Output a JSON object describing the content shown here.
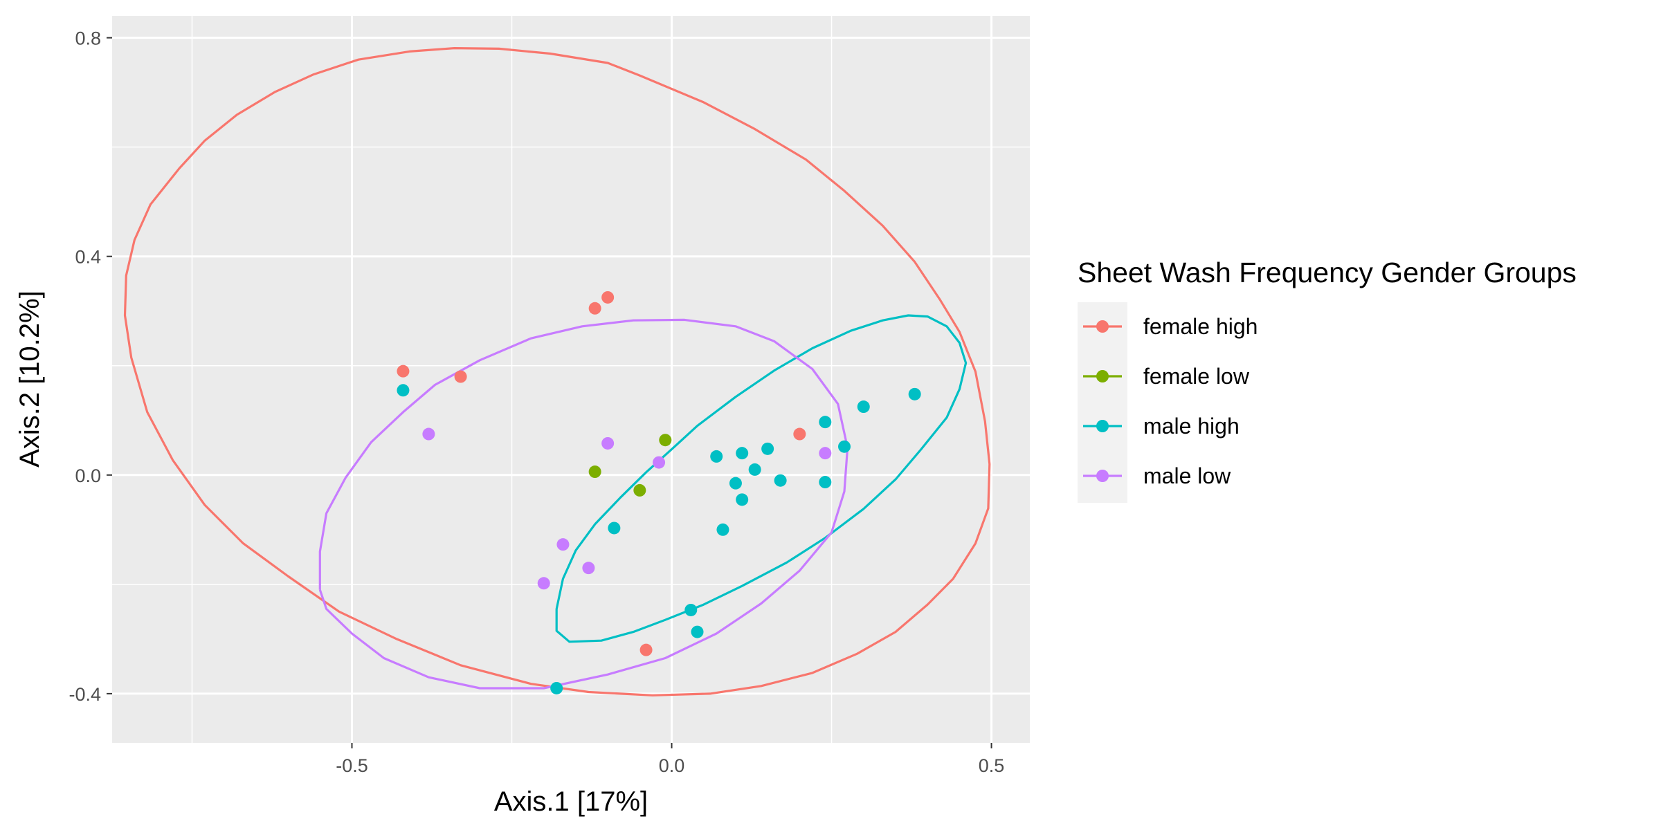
{
  "chart_data": {
    "type": "scatter",
    "title": "",
    "xlabel": "Axis.1   [17%]",
    "ylabel": "Axis.2   [10.2%]",
    "xlim": [
      -0.875,
      0.56
    ],
    "ylim": [
      -0.49,
      0.84
    ],
    "x_ticks": [
      -0.5,
      0.0,
      0.5
    ],
    "x_tick_labels": [
      "-0.5",
      "0.0",
      "0.5"
    ],
    "y_ticks": [
      -0.4,
      0.0,
      0.4,
      0.8
    ],
    "y_tick_labels": [
      "-0.4",
      "0.0",
      "0.4",
      "0.8"
    ],
    "grid": true,
    "legend": {
      "title": "Sheet Wash Frequency Gender Groups",
      "position": "right"
    },
    "series": [
      {
        "name": "female high",
        "color": "#F8766D",
        "points": [
          [
            -0.12,
            0.305
          ],
          [
            -0.1,
            0.325
          ],
          [
            -0.42,
            0.19
          ],
          [
            -0.33,
            0.18
          ],
          [
            0.2,
            0.075
          ],
          [
            -0.04,
            -0.32
          ]
        ],
        "ellipse": [
          [
            -0.77,
            0.561
          ],
          [
            -0.73,
            0.612
          ],
          [
            -0.68,
            0.659
          ],
          [
            -0.62,
            0.701
          ],
          [
            -0.56,
            0.733
          ],
          [
            -0.49,
            0.76
          ],
          [
            -0.41,
            0.775
          ],
          [
            -0.34,
            0.781
          ],
          [
            -0.27,
            0.78
          ],
          [
            -0.19,
            0.771
          ],
          [
            -0.1,
            0.754
          ],
          [
            -0.05,
            0.731
          ],
          [
            0.05,
            0.682
          ],
          [
            0.13,
            0.633
          ],
          [
            0.21,
            0.577
          ],
          [
            0.27,
            0.52
          ],
          [
            0.33,
            0.456
          ],
          [
            0.38,
            0.39
          ],
          [
            0.42,
            0.32
          ],
          [
            0.45,
            0.262
          ],
          [
            0.475,
            0.189
          ],
          [
            0.49,
            0.098
          ],
          [
            0.497,
            0.02
          ],
          [
            0.495,
            -0.061
          ],
          [
            0.475,
            -0.125
          ],
          [
            0.44,
            -0.19
          ],
          [
            0.4,
            -0.237
          ],
          [
            0.35,
            -0.287
          ],
          [
            0.29,
            -0.327
          ],
          [
            0.22,
            -0.362
          ],
          [
            0.14,
            -0.386
          ],
          [
            0.06,
            -0.4
          ],
          [
            -0.03,
            -0.403
          ],
          [
            -0.13,
            -0.397
          ],
          [
            -0.22,
            -0.382
          ],
          [
            -0.33,
            -0.348
          ],
          [
            -0.43,
            -0.3
          ],
          [
            -0.52,
            -0.25
          ],
          [
            -0.6,
            -0.185
          ],
          [
            -0.67,
            -0.125
          ],
          [
            -0.73,
            -0.055
          ],
          [
            -0.78,
            0.027
          ],
          [
            -0.82,
            0.115
          ],
          [
            -0.845,
            0.215
          ],
          [
            -0.855,
            0.292
          ],
          [
            -0.853,
            0.365
          ],
          [
            -0.84,
            0.43
          ],
          [
            -0.815,
            0.495
          ],
          [
            -0.77,
            0.561
          ]
        ]
      },
      {
        "name": "female low",
        "color": "#7CAE00",
        "points": [
          [
            -0.01,
            0.064
          ],
          [
            -0.12,
            0.006
          ],
          [
            -0.05,
            -0.028
          ]
        ]
      },
      {
        "name": "male high",
        "color": "#00BFC4",
        "points": [
          [
            -0.42,
            0.155
          ],
          [
            0.38,
            0.148
          ],
          [
            0.3,
            0.125
          ],
          [
            0.24,
            0.097
          ],
          [
            0.27,
            0.052
          ],
          [
            0.15,
            0.048
          ],
          [
            0.11,
            0.04
          ],
          [
            0.07,
            0.034
          ],
          [
            0.13,
            0.01
          ],
          [
            0.1,
            -0.015
          ],
          [
            0.17,
            -0.01
          ],
          [
            0.24,
            -0.013
          ],
          [
            0.11,
            -0.045
          ],
          [
            0.08,
            -0.1
          ],
          [
            -0.09,
            -0.097
          ],
          [
            0.03,
            -0.247
          ],
          [
            0.04,
            -0.287
          ],
          [
            -0.18,
            -0.39
          ]
        ],
        "ellipse": [
          [
            -0.18,
            -0.245
          ],
          [
            -0.17,
            -0.19
          ],
          [
            -0.15,
            -0.138
          ],
          [
            -0.12,
            -0.09
          ],
          [
            -0.08,
            -0.041
          ],
          [
            -0.04,
            0.005
          ],
          [
            0.0,
            0.047
          ],
          [
            0.04,
            0.09
          ],
          [
            0.1,
            0.143
          ],
          [
            0.16,
            0.191
          ],
          [
            0.22,
            0.232
          ],
          [
            0.28,
            0.264
          ],
          [
            0.33,
            0.283
          ],
          [
            0.37,
            0.292
          ],
          [
            0.4,
            0.29
          ],
          [
            0.43,
            0.272
          ],
          [
            0.45,
            0.242
          ],
          [
            0.46,
            0.205
          ],
          [
            0.45,
            0.157
          ],
          [
            0.43,
            0.105
          ],
          [
            0.39,
            0.047
          ],
          [
            0.35,
            -0.008
          ],
          [
            0.3,
            -0.062
          ],
          [
            0.24,
            -0.115
          ],
          [
            0.18,
            -0.16
          ],
          [
            0.11,
            -0.203
          ],
          [
            0.05,
            -0.237
          ],
          [
            -0.01,
            -0.265
          ],
          [
            -0.06,
            -0.287
          ],
          [
            -0.11,
            -0.303
          ],
          [
            -0.16,
            -0.305
          ],
          [
            -0.18,
            -0.285
          ],
          [
            -0.18,
            -0.245
          ]
        ]
      },
      {
        "name": "male low",
        "color": "#C77CFF",
        "points": [
          [
            -0.38,
            0.075
          ],
          [
            -0.1,
            0.058
          ],
          [
            -0.02,
            0.023
          ],
          [
            0.24,
            0.04
          ],
          [
            -0.17,
            -0.127
          ],
          [
            -0.13,
            -0.17
          ],
          [
            -0.2,
            -0.198
          ]
        ],
        "ellipse": [
          [
            -0.55,
            -0.21
          ],
          [
            -0.55,
            -0.14
          ],
          [
            -0.54,
            -0.07
          ],
          [
            -0.51,
            -0.005
          ],
          [
            -0.47,
            0.06
          ],
          [
            -0.42,
            0.115
          ],
          [
            -0.37,
            0.165
          ],
          [
            -0.3,
            0.21
          ],
          [
            -0.22,
            0.25
          ],
          [
            -0.14,
            0.272
          ],
          [
            -0.06,
            0.283
          ],
          [
            0.02,
            0.284
          ],
          [
            0.1,
            0.272
          ],
          [
            0.16,
            0.245
          ],
          [
            0.22,
            0.194
          ],
          [
            0.26,
            0.13
          ],
          [
            0.275,
            0.05
          ],
          [
            0.27,
            -0.03
          ],
          [
            0.25,
            -0.105
          ],
          [
            0.2,
            -0.175
          ],
          [
            0.14,
            -0.235
          ],
          [
            0.07,
            -0.29
          ],
          [
            -0.01,
            -0.335
          ],
          [
            -0.1,
            -0.365
          ],
          [
            -0.2,
            -0.39
          ],
          [
            -0.3,
            -0.39
          ],
          [
            -0.38,
            -0.37
          ],
          [
            -0.45,
            -0.335
          ],
          [
            -0.5,
            -0.29
          ],
          [
            -0.54,
            -0.245
          ],
          [
            -0.55,
            -0.21
          ]
        ]
      }
    ]
  }
}
